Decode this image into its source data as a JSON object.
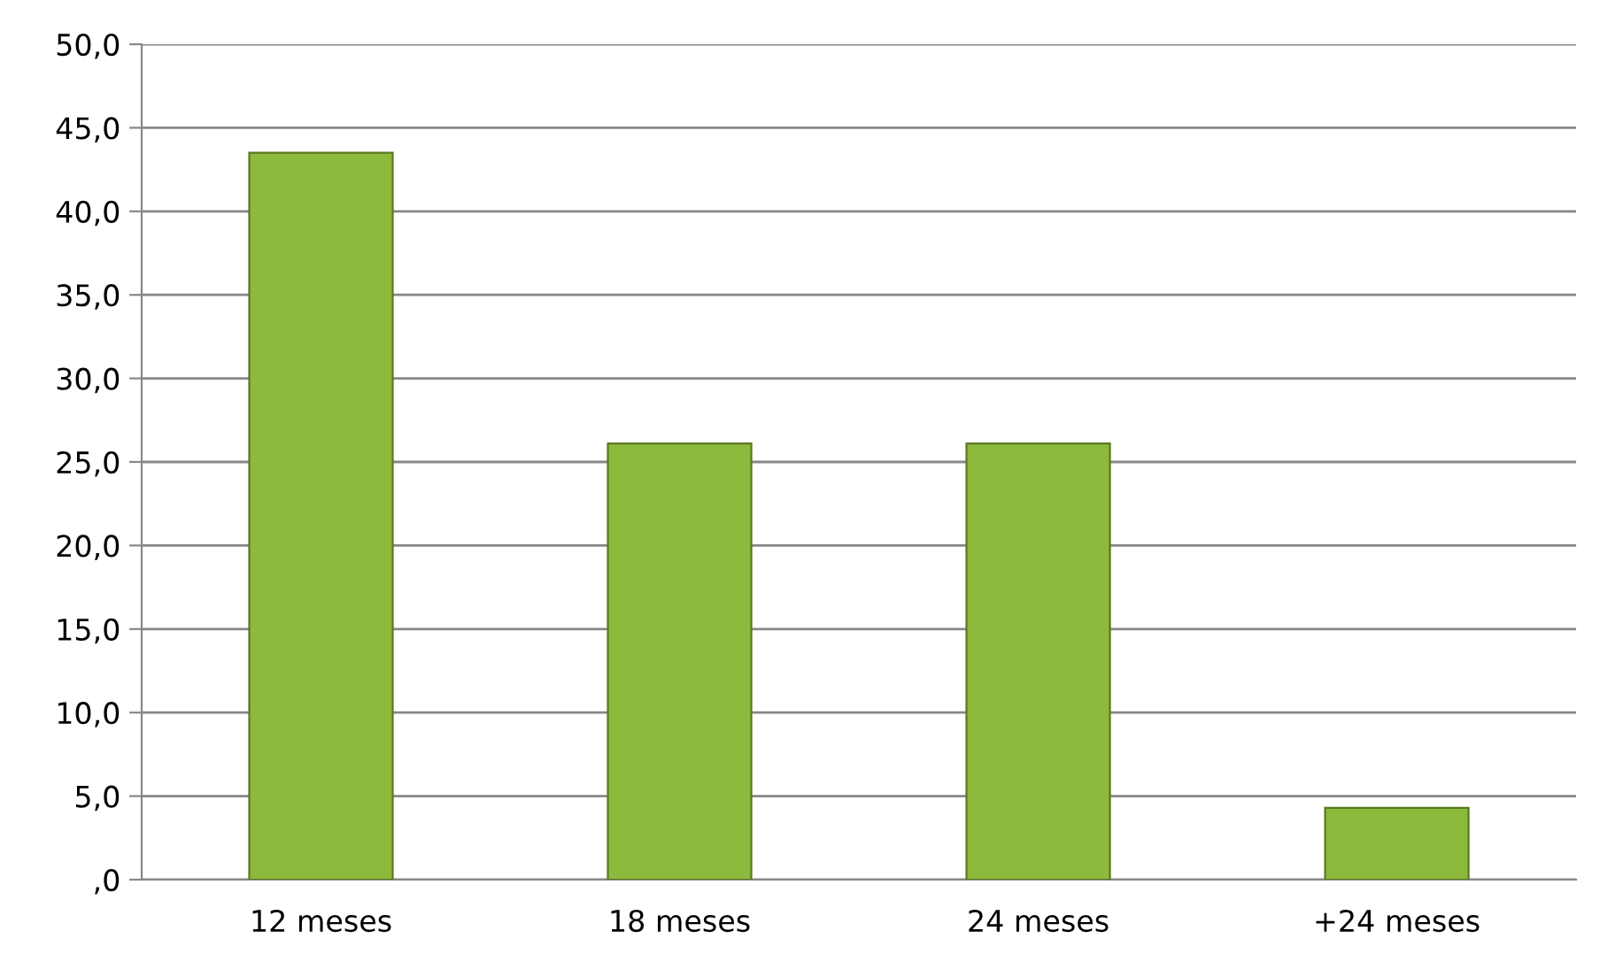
{
  "chart_data": {
    "type": "bar",
    "categories": [
      "12 meses",
      "18 meses",
      "24 meses",
      "+24 meses"
    ],
    "values": [
      43.5,
      26.1,
      26.1,
      4.3
    ],
    "color": "#8cba3c",
    "ylim": [
      0,
      50
    ],
    "yticks": [
      {
        "value": 0,
        "label": ",0"
      },
      {
        "value": 5,
        "label": "5,0"
      },
      {
        "value": 10,
        "label": "10,0"
      },
      {
        "value": 15,
        "label": "15,0"
      },
      {
        "value": 20,
        "label": "20,0"
      },
      {
        "value": 25,
        "label": "25,0"
      },
      {
        "value": 30,
        "label": "30,0"
      },
      {
        "value": 35,
        "label": "35,0"
      },
      {
        "value": 40,
        "label": "40,0"
      },
      {
        "value": 45,
        "label": "45,0"
      },
      {
        "value": 50,
        "label": "50,0"
      }
    ],
    "grid": "y"
  }
}
